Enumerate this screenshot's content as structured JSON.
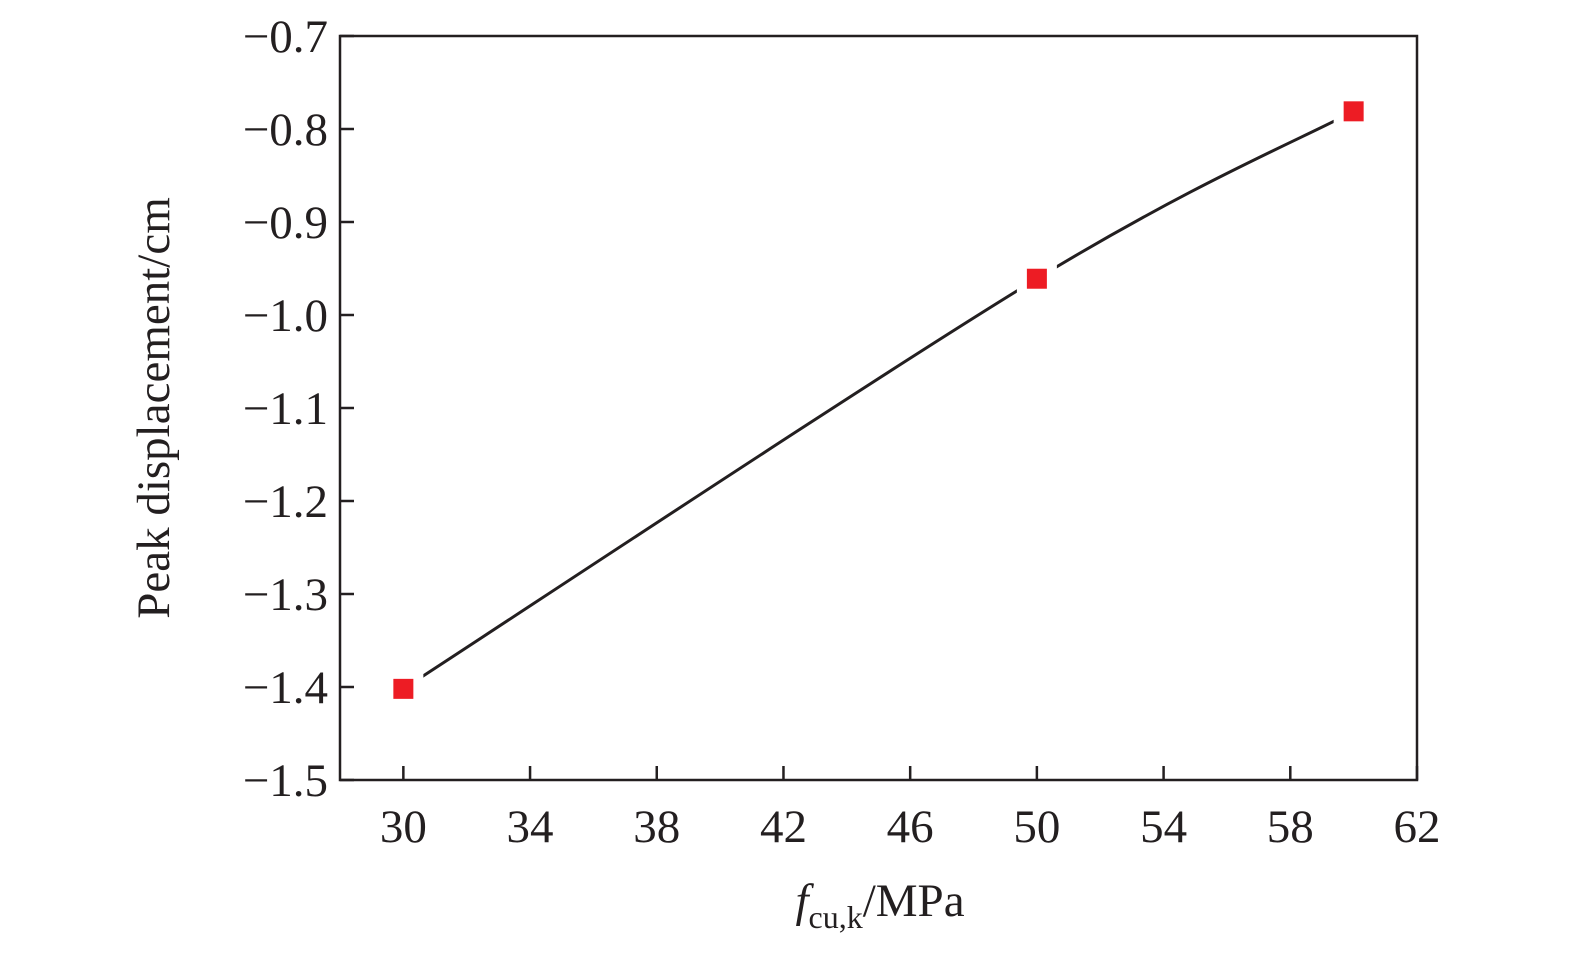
{
  "chart_data": {
    "type": "line",
    "xlabel": {
      "symbol": "f",
      "subscript": "cu,k",
      "unit": "/MPa"
    },
    "ylabel": "Peak displacement/cm",
    "xlim": [
      28,
      62
    ],
    "ylim": [
      -1.5,
      -0.7
    ],
    "xticks": [
      30,
      34,
      38,
      42,
      46,
      50,
      54,
      58,
      62
    ],
    "xtick_labels": [
      "30",
      "34",
      "38",
      "42",
      "46",
      "50",
      "54",
      "58",
      "62"
    ],
    "yticks": [
      -0.7,
      -0.8,
      -0.9,
      -1.0,
      -1.1,
      -1.2,
      -1.3,
      -1.4,
      -1.5
    ],
    "ytick_labels": [
      "−0.7",
      "−0.8",
      "−0.9",
      "−1.0",
      "−1.1",
      "−1.2",
      "−1.3",
      "−1.4",
      "−1.5"
    ],
    "grid": false,
    "series": [
      {
        "x": [
          30,
          50,
          60
        ],
        "y": [
          -1.402,
          -0.961,
          -0.781
        ],
        "marker": "square",
        "marker_color": "#ed1c24",
        "line_color": "#231f20"
      }
    ]
  }
}
